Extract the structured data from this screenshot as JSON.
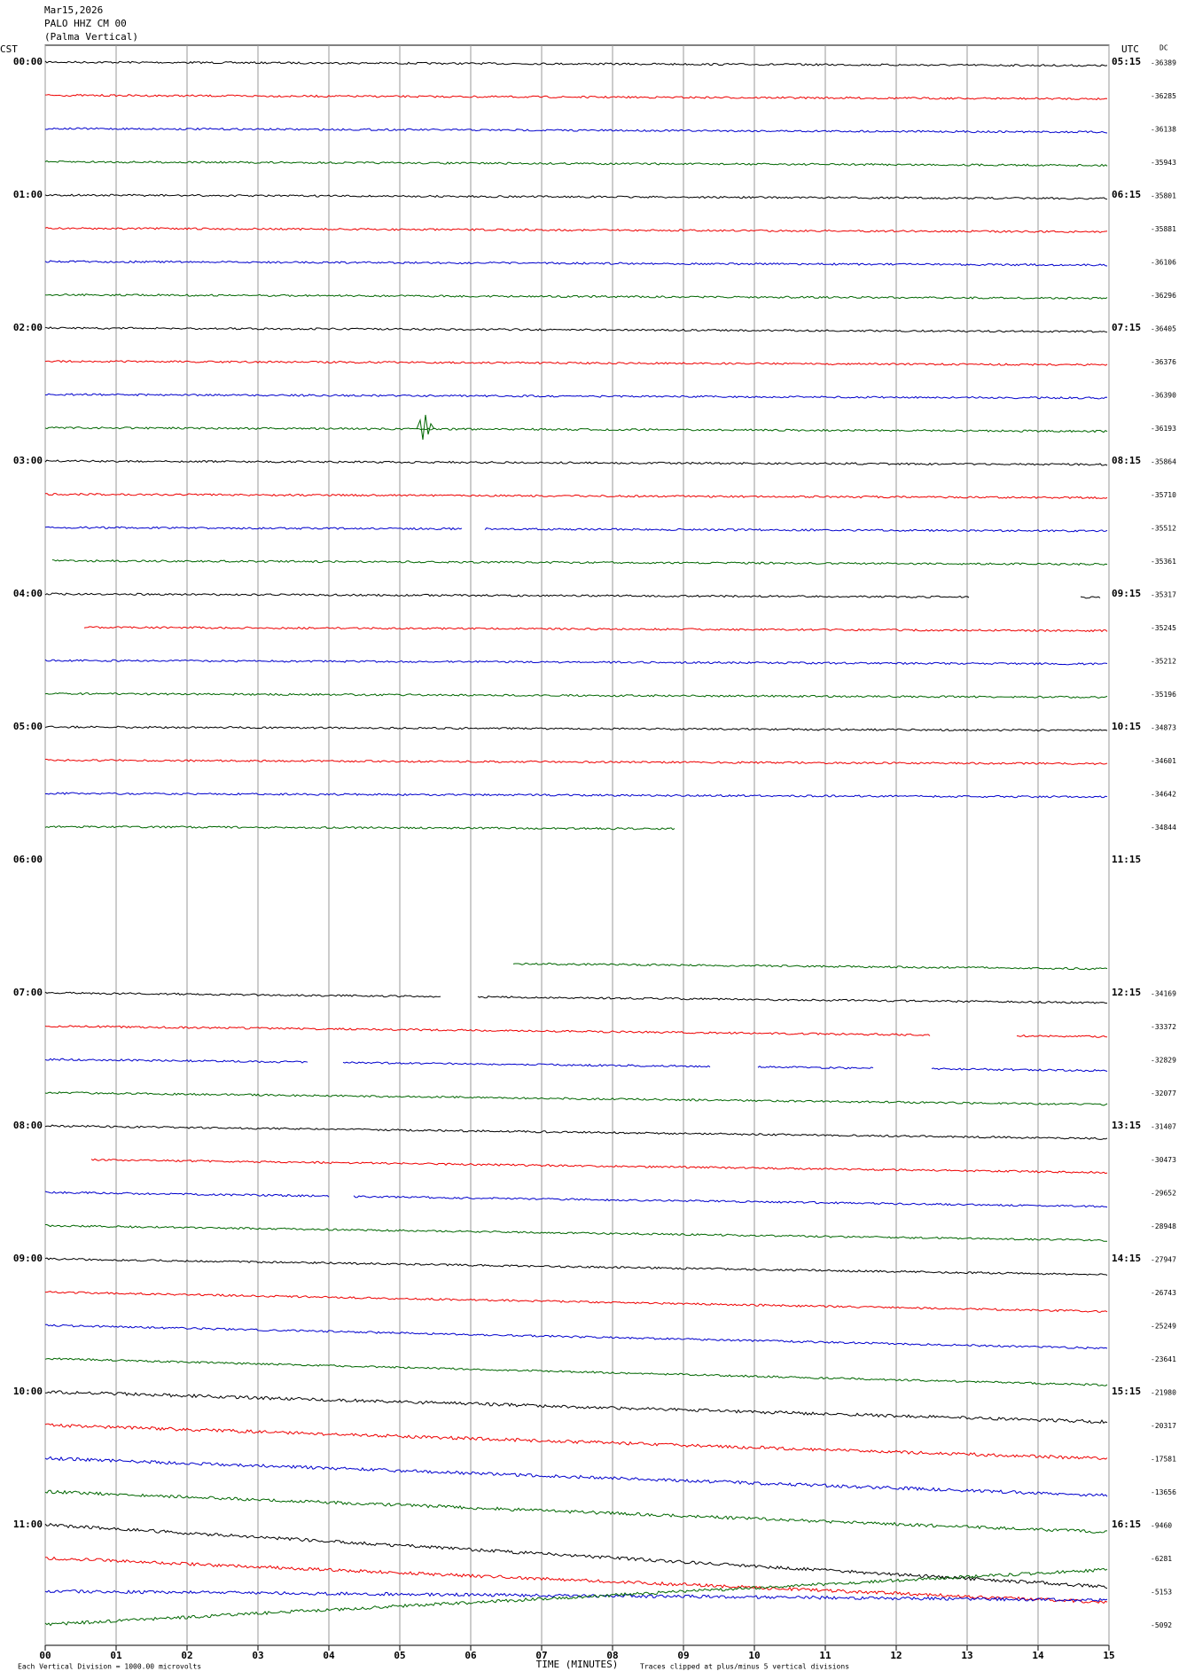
{
  "header": {
    "date": "Mar15,2026",
    "station": "PALO HHZ CM 00",
    "name": "(Palma Vertical)"
  },
  "left_axis_title": "CST",
  "right_axis_title": "UTC",
  "dc_title": "DC",
  "left_labels": [
    "00:00",
    "01:00",
    "02:00",
    "03:00",
    "04:00",
    "05:00",
    "06:00",
    "07:00",
    "08:00",
    "09:00",
    "10:00",
    "11:00"
  ],
  "right_labels": [
    "05:15",
    "06:15",
    "07:15",
    "08:15",
    "09:15",
    "10:15",
    "11:15",
    "12:15",
    "13:15",
    "14:15",
    "15:15",
    "16:15"
  ],
  "dc_values": [
    -36389,
    -36285,
    -36138,
    -35943,
    -35801,
    -35881,
    -36106,
    -36296,
    -36405,
    -36376,
    -36390,
    -36193,
    -35864,
    -35710,
    -35512,
    -35361,
    -35317,
    -35245,
    -35212,
    -35196,
    -34873,
    -34601,
    -34642,
    -34844,
    null,
    null,
    null,
    null,
    -34169,
    -33372,
    -32829,
    -32077,
    -31407,
    -30473,
    -29652,
    -28948,
    -27947,
    -26743,
    -25249,
    -23641,
    -21980,
    -20317,
    -17581,
    -13656,
    -9460,
    -6281,
    -5153,
    -5092
  ],
  "x_ticks": [
    "00",
    "01",
    "02",
    "03",
    "04",
    "05",
    "06",
    "07",
    "08",
    "09",
    "10",
    "11",
    "12",
    "13",
    "14",
    "15"
  ],
  "x_label": "TIME (MINUTES)",
  "footer_left": "Each Vertical Division = 1000.00 microvolts",
  "footer_right": "Traces clipped at plus/minus 5 vertical divisions"
}
